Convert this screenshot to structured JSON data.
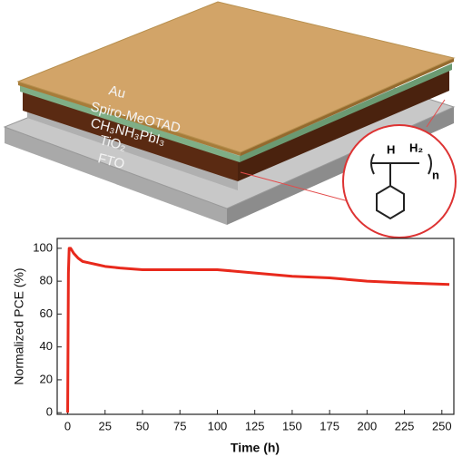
{
  "diagram": {
    "layers": [
      "Au",
      "Spiro-MeOTAD",
      "CH₃NH₃PbI₃",
      "TiO₂",
      "FTO"
    ],
    "molecule": {
      "h": "H",
      "h2": "H₂",
      "n": "n"
    }
  },
  "chart_data": {
    "type": "line",
    "x": [
      0,
      0.5,
      1,
      2,
      4,
      7,
      10,
      15,
      20,
      25,
      35,
      50,
      75,
      100,
      125,
      150,
      175,
      200,
      225,
      255
    ],
    "series": [
      {
        "name": "Normalized PCE",
        "color": "#e8291c",
        "values": [
          0,
          85,
          100,
          100,
          97,
          94,
          92,
          91,
          90,
          89,
          88,
          87,
          87,
          87,
          85,
          83,
          82,
          80,
          79,
          78
        ]
      }
    ],
    "x_label": "Time (h)",
    "y_label": "Normalized PCE (%)",
    "xlim": [
      -7,
      258
    ],
    "ylim": [
      -1,
      106
    ],
    "xticks": [
      0,
      25,
      50,
      75,
      100,
      125,
      150,
      175,
      200,
      225,
      250
    ],
    "yticks": [
      0,
      20,
      40,
      60,
      80,
      100
    ]
  }
}
